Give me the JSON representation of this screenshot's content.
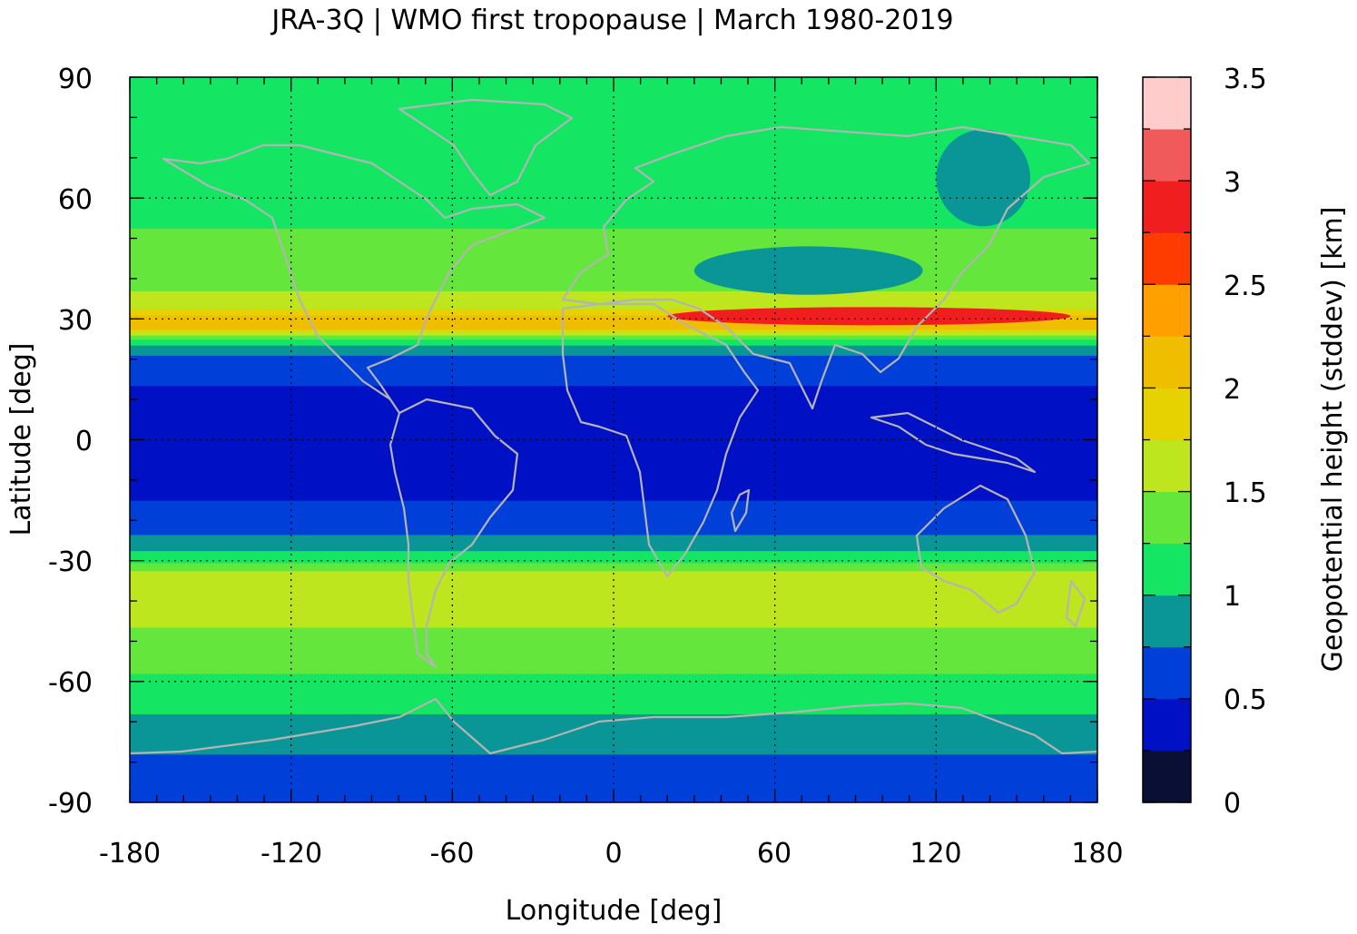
{
  "chart_data": {
    "type": "heatmap",
    "title": "JRA-3Q | WMO first tropopause | March 1980-2019",
    "xlabel": "Longitude [deg]",
    "ylabel": "Latitude [deg]",
    "colorbar_label": "Geopotential height (stddev) [km]",
    "xlim": [
      -180,
      180
    ],
    "ylim": [
      -90,
      90
    ],
    "xticks": [
      "-180",
      "-120",
      "-60",
      "0",
      "60",
      "120",
      "180"
    ],
    "yticks": [
      "90",
      "60",
      "30",
      "0",
      "-30",
      "-60",
      "-90"
    ],
    "colorbar_ticks": [
      "0",
      "0.5",
      "1",
      "1.5",
      "2",
      "2.5",
      "3",
      "3.5"
    ],
    "grid": "dotted at 60 deg longitude and 30 deg latitude",
    "levels": [
      0,
      0.25,
      0.5,
      0.75,
      1.0,
      1.25,
      1.5,
      1.75,
      2.0,
      2.25,
      2.5,
      2.75,
      3.0,
      3.25,
      3.5
    ],
    "level_colors": [
      "#0a0f35",
      "#0010c4",
      "#0040d8",
      "#0a9696",
      "#14e664",
      "#64e63c",
      "#bee61e",
      "#e6d200",
      "#f0be00",
      "#ffa000",
      "#ff3c00",
      "#f01e1e",
      "#f05a5a",
      "#ffcccc"
    ],
    "zonal_profile": {
      "lat": [
        -90,
        -80,
        -70,
        -60,
        -50,
        -40,
        -35,
        -30,
        -25,
        -20,
        -10,
        0,
        10,
        20,
        25,
        28,
        30,
        33,
        40,
        50,
        60,
        70,
        80,
        90
      ],
      "value": [
        0.6,
        0.7,
        0.95,
        1.2,
        1.45,
        1.6,
        1.75,
        1.2,
        0.8,
        0.6,
        0.4,
        0.45,
        0.45,
        0.6,
        1.2,
        2.1,
        2.2,
        1.7,
        1.35,
        1.3,
        1.1,
        1.05,
        1.05,
        1.05
      ]
    },
    "features": [
      {
        "label": "subtropical maximum NH",
        "lon_range": [
          20,
          170
        ],
        "lat": 30,
        "max_value": 2.75
      },
      {
        "label": "low variability region Siberia",
        "lon_range": [
          120,
          155
        ],
        "lat_range": [
          53,
          77
        ],
        "value": 0.9
      },
      {
        "label": "low variability region Central Asia",
        "lon_range": [
          30,
          115
        ],
        "lat_range": [
          36,
          48
        ],
        "value": 0.9
      }
    ]
  }
}
